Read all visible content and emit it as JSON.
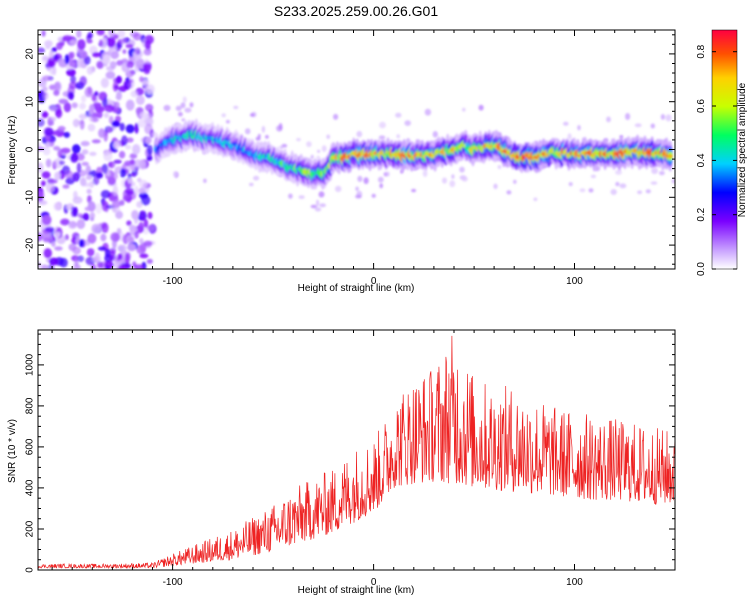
{
  "figure": {
    "title": "S233.2025.259.00.26.G01"
  },
  "chart_data": [
    {
      "type": "heatmap",
      "xlabel": "Height of straight line (km)",
      "ylabel": "Frequency (Hz)",
      "xlim": [
        -167,
        150
      ],
      "ylim": [
        -25,
        25
      ],
      "xticks": [
        -100,
        0,
        100
      ],
      "yticks": [
        -20,
        -10,
        0,
        10,
        20
      ],
      "colorbar": {
        "label": "Normalized spectral amplitude",
        "range": [
          0.0,
          0.88
        ],
        "ticks": [
          0.0,
          0.2,
          0.4,
          0.6,
          0.8
        ],
        "colors": [
          "#ffffff",
          "#c8a0ff",
          "#7a00ff",
          "#0000ff",
          "#00d0ff",
          "#00ff60",
          "#c8ff00",
          "#ffd000",
          "#ff5000",
          "#ff0040"
        ]
      },
      "noise_region": {
        "x_from": -167,
        "x_to": -110,
        "description_color": "#7a30e8"
      },
      "ridge": {
        "x": [
          -108,
          -100,
          -90,
          -80,
          -70,
          -60,
          -50,
          -40,
          -30,
          -25,
          -20,
          -10,
          0,
          10,
          20,
          30,
          40,
          45,
          50,
          60,
          70,
          80,
          90,
          100,
          110,
          120,
          130,
          140,
          148
        ],
        "y": [
          0,
          2,
          3,
          2,
          1,
          -1,
          -2,
          -4,
          -5,
          -5,
          -2,
          -1,
          -1,
          -1,
          -1.5,
          -1,
          0,
          1,
          0,
          1,
          -1.5,
          -1.5,
          -0.5,
          -1,
          -1,
          -1,
          -0.5,
          -1,
          -1
        ],
        "value": [
          0.35,
          0.45,
          0.5,
          0.45,
          0.4,
          0.45,
          0.5,
          0.55,
          0.6,
          0.55,
          0.75,
          0.8,
          0.75,
          0.7,
          0.8,
          0.7,
          0.7,
          0.6,
          0.7,
          0.75,
          0.85,
          0.8,
          0.7,
          0.8,
          0.75,
          0.8,
          0.75,
          0.8,
          0.7
        ]
      }
    },
    {
      "type": "line",
      "xlabel": "Height of straight line (km)",
      "ylabel": "SNR (10 * v/v)",
      "xlim": [
        -167,
        150
      ],
      "ylim": [
        0,
        1170
      ],
      "xticks": [
        -100,
        0,
        100
      ],
      "yticks": [
        0,
        200,
        400,
        600,
        800,
        1000
      ],
      "color": "#ee2222",
      "envelope": {
        "x": [
          -167,
          -140,
          -110,
          -100,
          -90,
          -80,
          -70,
          -60,
          -50,
          -40,
          -30,
          -20,
          -10,
          0,
          5,
          10,
          20,
          30,
          40,
          50,
          60,
          70,
          80,
          90,
          100,
          110,
          120,
          130,
          140,
          150
        ],
        "low": [
          10,
          10,
          10,
          20,
          30,
          40,
          50,
          70,
          90,
          120,
          150,
          180,
          230,
          280,
          330,
          400,
          420,
          430,
          420,
          400,
          390,
          380,
          370,
          360,
          350,
          340,
          340,
          330,
          320,
          320
        ],
        "high": [
          30,
          30,
          35,
          80,
          120,
          160,
          200,
          260,
          320,
          400,
          450,
          500,
          600,
          650,
          720,
          850,
          950,
          1000,
          1170,
          950,
          900,
          900,
          850,
          800,
          780,
          760,
          740,
          720,
          700,
          680
        ]
      }
    }
  ]
}
